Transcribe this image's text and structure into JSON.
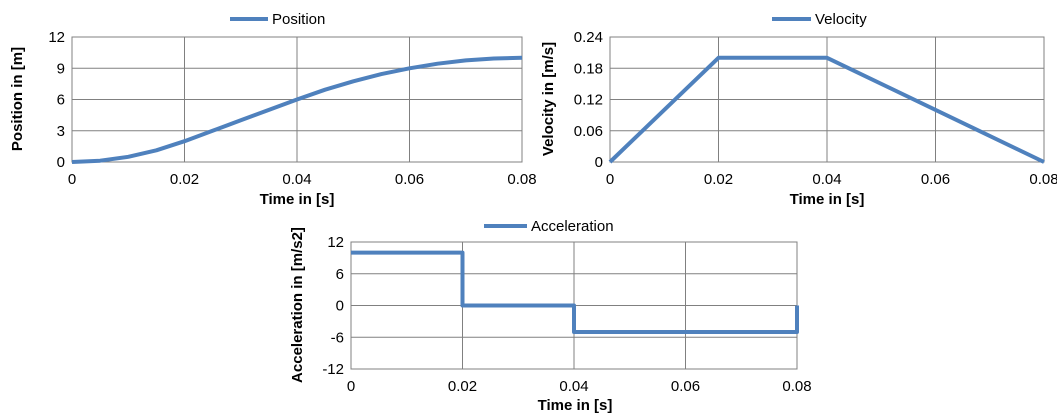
{
  "chart_data": [
    {
      "type": "line",
      "series": [
        {
          "name": "Position",
          "x": [
            0,
            0.005,
            0.01,
            0.015,
            0.02,
            0.025,
            0.03,
            0.035,
            0.04,
            0.045,
            0.05,
            0.055,
            0.06,
            0.065,
            0.07,
            0.075,
            0.08
          ],
          "values": [
            0,
            0.125,
            0.5,
            1.125,
            2,
            3,
            4,
            5,
            6,
            6.94,
            7.75,
            8.44,
            9,
            9.44,
            9.75,
            9.94,
            10
          ]
        }
      ],
      "xlabel": "Time in [s]",
      "ylabel": "Position in [m]",
      "xlim": [
        0,
        0.08
      ],
      "ylim": [
        0,
        12
      ],
      "xticks": [
        "0",
        "0.02",
        "0.04",
        "0.06",
        "0.08"
      ],
      "yticks": [
        "0",
        "3",
        "6",
        "9",
        "12"
      ],
      "grid": true,
      "legend": "top-center",
      "color": "#4f81bd"
    },
    {
      "type": "line",
      "series": [
        {
          "name": "Velocity",
          "x": [
            0,
            0.02,
            0.04,
            0.08
          ],
          "values": [
            0,
            0.2,
            0.2,
            0
          ]
        }
      ],
      "xlabel": "Time in [s]",
      "ylabel": "Velocity in [m/s]",
      "xlim": [
        0,
        0.08
      ],
      "ylim": [
        0,
        0.24
      ],
      "xticks": [
        "0",
        "0.02",
        "0.04",
        "0.06",
        "0.08"
      ],
      "yticks": [
        "0",
        "0.06",
        "0.12",
        "0.18",
        "0.24"
      ],
      "grid": true,
      "legend": "top-center",
      "color": "#4f81bd"
    },
    {
      "type": "line",
      "series": [
        {
          "name": "Acceleration",
          "x": [
            0,
            0.02,
            0.02,
            0.04,
            0.04,
            0.08,
            0.08
          ],
          "values": [
            10,
            10,
            0,
            0,
            -5,
            -5,
            0
          ]
        }
      ],
      "xlabel": "Time in [s]",
      "ylabel": "Acceleration in [m/s2]",
      "xlim": [
        0,
        0.08
      ],
      "ylim": [
        -12,
        12
      ],
      "xticks": [
        "0",
        "0.02",
        "0.04",
        "0.06",
        "0.08"
      ],
      "yticks": [
        "-12",
        "-6",
        "0",
        "6",
        "12"
      ],
      "grid": true,
      "legend": "top-center",
      "color": "#4f81bd"
    }
  ]
}
